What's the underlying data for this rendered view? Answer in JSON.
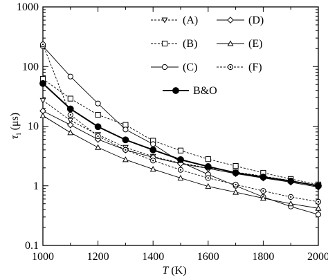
{
  "chart_data": {
    "type": "line",
    "xlabel_italic": "T",
    "xlabel_unit": " (K)",
    "ylabel_symbol": "τ",
    "ylabel_sub": "i",
    "ylabel_unit": " (μs)",
    "xlim": [
      1000,
      2000
    ],
    "ylim": [
      0.1,
      1000
    ],
    "yscale": "log",
    "grid": false,
    "legend_position": "top-right",
    "x_ticks": [
      1000,
      1200,
      1400,
      1600,
      1800,
      2000
    ],
    "y_ticks": [
      0.1,
      1,
      10,
      100,
      1000
    ],
    "x_tick_labels": [
      "1000",
      "1200",
      "1400",
      "1600",
      "1800",
      "2000"
    ],
    "y_tick_labels": [
      "0.1",
      "1",
      "10",
      "100",
      "1000"
    ],
    "series": [
      {
        "name": "(A)",
        "marker": "triangle-down",
        "line": "dashed",
        "x": [
          1000,
          1100,
          1200,
          1300,
          1400,
          1500,
          1600,
          1700,
          1800,
          1900,
          2000
        ],
        "y": [
          27,
          12.5,
          7.2,
          4.4,
          3.1,
          2.4,
          2.0,
          1.7,
          1.45,
          1.22,
          1.0
        ]
      },
      {
        "name": "(B)",
        "marker": "square",
        "line": "dashed",
        "x": [
          1000,
          1100,
          1200,
          1300,
          1400,
          1500,
          1600,
          1700,
          1800,
          1900,
          2000
        ],
        "y": [
          62,
          29,
          15.5,
          10.5,
          5.7,
          3.9,
          2.8,
          2.15,
          1.65,
          1.3,
          1.05
        ]
      },
      {
        "name": "(C)",
        "marker": "circle",
        "line": "solid",
        "x": [
          1000,
          1100,
          1200,
          1300,
          1400,
          1500,
          1600,
          1700,
          1800,
          1900,
          2000
        ],
        "y": [
          220,
          68,
          24,
          8.8,
          5.0,
          2.5,
          1.55,
          1.0,
          0.65,
          0.45,
          0.33
        ]
      },
      {
        "name": "(D)",
        "marker": "diamond",
        "line": "solid",
        "x": [
          1000,
          1100,
          1200,
          1300,
          1400,
          1500,
          1600,
          1700,
          1800,
          1900,
          2000
        ],
        "y": [
          18,
          10.5,
          6.0,
          4.0,
          3.0,
          2.35,
          1.95,
          1.6,
          1.35,
          1.15,
          0.95
        ]
      },
      {
        "name": "(E)",
        "marker": "triangle-up",
        "line": "solid",
        "x": [
          1000,
          1100,
          1200,
          1300,
          1400,
          1500,
          1600,
          1700,
          1800,
          1900,
          2000
        ],
        "y": [
          15,
          7.8,
          4.4,
          2.75,
          1.9,
          1.35,
          0.98,
          0.78,
          0.62,
          0.5,
          0.42
        ]
      },
      {
        "name": "(F)",
        "marker": "circle-dot",
        "line": "dashed",
        "x": [
          1000,
          1100,
          1200,
          1300,
          1400,
          1500,
          1600,
          1700,
          1800,
          1900,
          2000
        ],
        "y": [
          235,
          15.5,
          6.8,
          4.0,
          2.65,
          1.85,
          1.35,
          1.05,
          0.82,
          0.65,
          0.54
        ]
      },
      {
        "name": "B&O",
        "marker": "filled-circle",
        "line": "bold",
        "x": [
          1000,
          1100,
          1200,
          1300,
          1400,
          1500,
          1600,
          1700,
          1800,
          1900,
          2000
        ],
        "y": [
          52,
          19.5,
          9.8,
          5.9,
          4.0,
          2.75,
          2.1,
          1.65,
          1.4,
          1.2,
          1.0
        ]
      }
    ]
  }
}
